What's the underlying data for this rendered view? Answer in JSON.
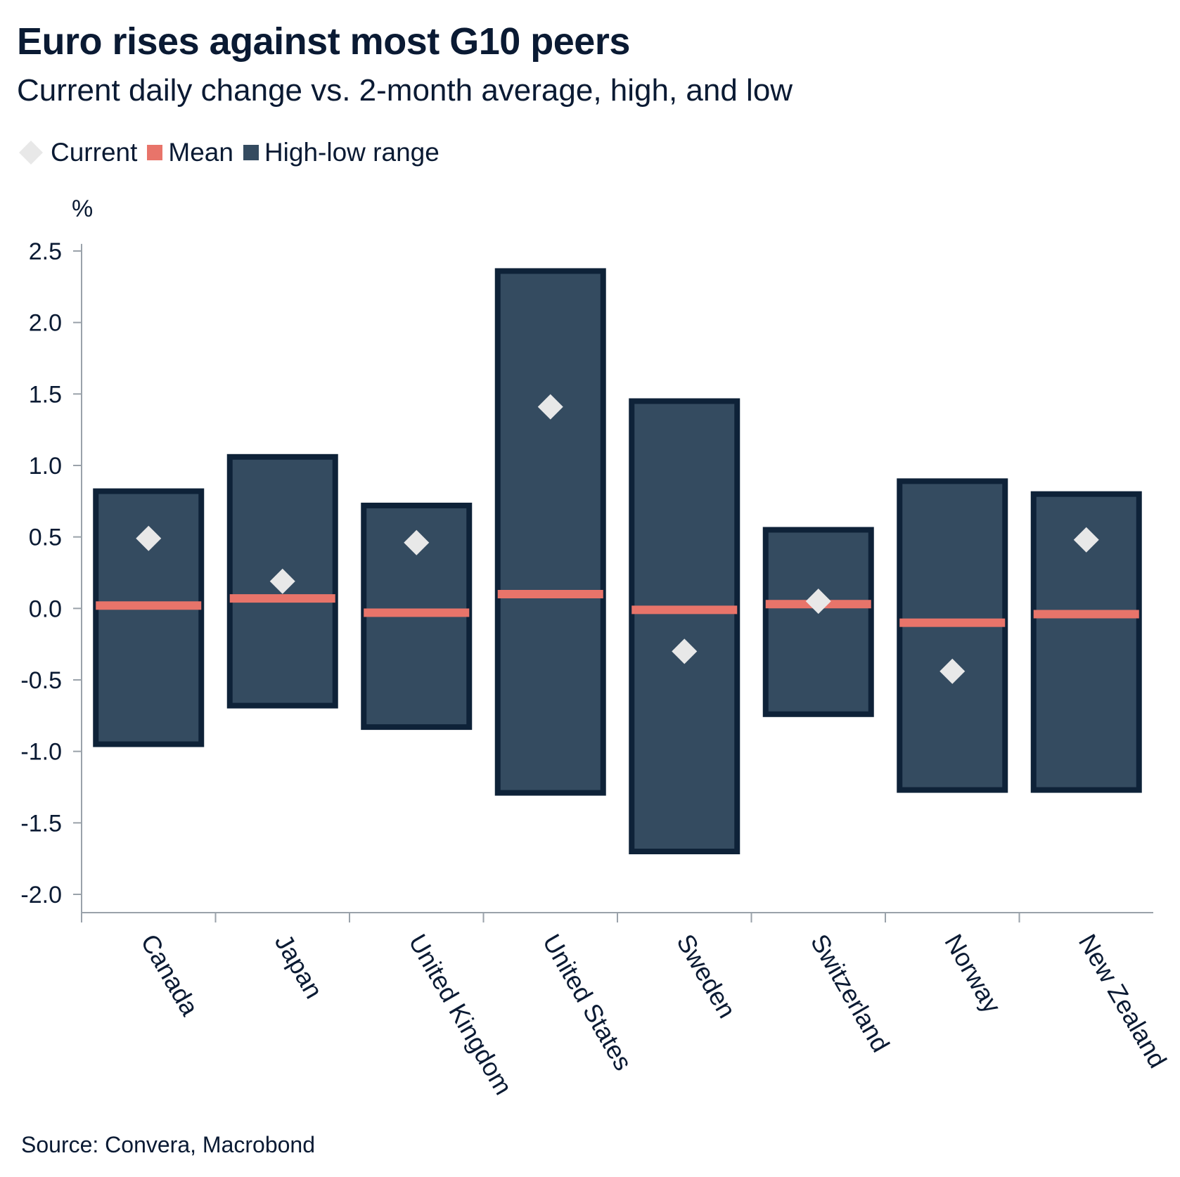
{
  "colors": {
    "text": "#0a1a33",
    "current": "#e8e8e8",
    "mean": "#e8746a",
    "range_fill": "#344b60",
    "range_border": "#0e2238",
    "axis": "#9aa2aa"
  },
  "legend": {
    "current_label": "Current",
    "mean_label": "Mean",
    "range_label": "High-low range"
  },
  "source": "Source: Convera, Macrobond",
  "chart_data": {
    "type": "range-bar",
    "title": "Euro rises against most G10 peers",
    "subtitle": "Current daily change vs. 2-month average, high, and low",
    "ylabel": "%",
    "ylim": [
      -2.15,
      2.55
    ],
    "yticks": [
      2.5,
      2.0,
      1.5,
      1.0,
      0.5,
      0.0,
      -0.5,
      -1.0,
      -1.5,
      -2.0
    ],
    "ytick_labels": [
      "2.5",
      "2.0",
      "1.5",
      "1.0",
      "0.5",
      "0.0",
      "-0.5",
      "-1.0",
      "-1.5",
      "-2.0"
    ],
    "categories": [
      "Canada",
      "Japan",
      "United Kingdom",
      "United States",
      "Sweden",
      "Switzerland",
      "Norway",
      "New Zealand"
    ],
    "series": [
      {
        "name": "High",
        "values": [
          0.82,
          1.06,
          0.72,
          2.36,
          1.45,
          0.55,
          0.89,
          0.8
        ]
      },
      {
        "name": "Low",
        "values": [
          -0.95,
          -0.68,
          -0.83,
          -1.29,
          -1.7,
          -0.74,
          -1.27,
          -1.27
        ]
      },
      {
        "name": "Mean",
        "values": [
          0.02,
          0.07,
          -0.03,
          0.1,
          -0.01,
          0.03,
          -0.1,
          -0.04
        ]
      },
      {
        "name": "Current",
        "values": [
          0.49,
          0.19,
          0.46,
          1.41,
          -0.3,
          0.05,
          -0.44,
          0.48
        ]
      }
    ]
  }
}
